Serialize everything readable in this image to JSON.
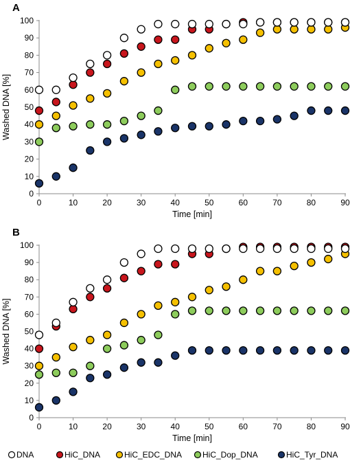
{
  "legend": [
    {
      "name": "DNA",
      "color": "#ffffff"
    },
    {
      "name": "HiC_DNA",
      "color": "#c8161d"
    },
    {
      "name": "HiC_EDC_DNA",
      "color": "#f5c000"
    },
    {
      "name": "HiC_Dop_DNA",
      "color": "#8dcc5c"
    },
    {
      "name": "HiC_Tyr_DNA",
      "color": "#1a3468"
    }
  ],
  "chart_data": [
    {
      "type": "scatter",
      "panel_label": "A",
      "xlabel": "Time [min]",
      "ylabel": "Washed DNA [%]",
      "xlim": [
        0,
        90
      ],
      "ylim": [
        0,
        100
      ],
      "xticks": [
        0,
        10,
        20,
        30,
        40,
        50,
        60,
        70,
        80,
        90
      ],
      "yticks": [
        0,
        10,
        20,
        30,
        40,
        50,
        60,
        70,
        80,
        90,
        100
      ],
      "grid": false,
      "legend_position": "bottom",
      "x": [
        0,
        5,
        10,
        15,
        20,
        25,
        30,
        35,
        40,
        45,
        50,
        55,
        60,
        65,
        70,
        75,
        80,
        85,
        90
      ],
      "series": [
        {
          "name": "DNA",
          "values": [
            60,
            60,
            67,
            75,
            80,
            90,
            95,
            98,
            98,
            98,
            98,
            98,
            98,
            99,
            99,
            99,
            99,
            99,
            99
          ]
        },
        {
          "name": "HiC_DNA",
          "values": [
            48,
            53,
            63,
            70,
            75,
            81,
            85,
            89,
            89,
            95,
            95,
            98,
            99,
            99,
            99,
            99,
            99,
            99,
            99
          ]
        },
        {
          "name": "HiC_EDC_DNA",
          "values": [
            40,
            45,
            51,
            55,
            58,
            65,
            70,
            75,
            77,
            80,
            84,
            87,
            89,
            93,
            95,
            95,
            95,
            95,
            96
          ]
        },
        {
          "name": "HiC_Dop_DNA",
          "values": [
            30,
            38,
            39,
            40,
            40,
            42,
            45,
            48,
            60,
            62,
            62,
            62,
            62,
            62,
            62,
            62,
            62,
            62,
            62
          ]
        },
        {
          "name": "HiC_Tyr_DNA",
          "values": [
            6,
            10,
            15,
            25,
            30,
            32,
            34,
            36,
            38,
            39,
            39,
            40,
            42,
            42,
            43,
            45,
            48,
            48,
            48
          ]
        }
      ]
    },
    {
      "type": "scatter",
      "panel_label": "B",
      "xlabel": "Time [min]",
      "ylabel": "Washed DNA [%]",
      "xlim": [
        0,
        90
      ],
      "ylim": [
        0,
        100
      ],
      "xticks": [
        0,
        10,
        20,
        30,
        40,
        50,
        60,
        70,
        80,
        90
      ],
      "yticks": [
        0,
        10,
        20,
        30,
        40,
        50,
        60,
        70,
        80,
        90,
        100
      ],
      "grid": false,
      "legend_position": "bottom",
      "x": [
        0,
        5,
        10,
        15,
        20,
        25,
        30,
        35,
        40,
        45,
        50,
        55,
        60,
        65,
        70,
        75,
        80,
        85,
        90
      ],
      "series": [
        {
          "name": "DNA",
          "values": [
            48,
            55,
            67,
            75,
            80,
            90,
            95,
            98,
            98,
            98,
            98,
            98,
            98,
            98,
            98,
            98,
            98,
            98,
            98
          ]
        },
        {
          "name": "HiC_DNA",
          "values": [
            40,
            53,
            63,
            70,
            75,
            81,
            85,
            89,
            89,
            95,
            95,
            98,
            99,
            99,
            99,
            99,
            99,
            99,
            99
          ]
        },
        {
          "name": "HiC_EDC_DNA",
          "values": [
            30,
            35,
            41,
            45,
            48,
            55,
            60,
            65,
            67,
            70,
            74,
            76,
            80,
            85,
            85,
            88,
            90,
            92,
            95
          ]
        },
        {
          "name": "HiC_Dop_DNA",
          "values": [
            25,
            26,
            26,
            30,
            40,
            42,
            45,
            48,
            60,
            62,
            62,
            62,
            62,
            62,
            62,
            62,
            62,
            62,
            62
          ]
        },
        {
          "name": "HiC_Tyr_DNA",
          "values": [
            6,
            10,
            15,
            23,
            25,
            29,
            32,
            32,
            36,
            39,
            39,
            39,
            39,
            39,
            39,
            39,
            39,
            39,
            39
          ]
        }
      ]
    }
  ]
}
